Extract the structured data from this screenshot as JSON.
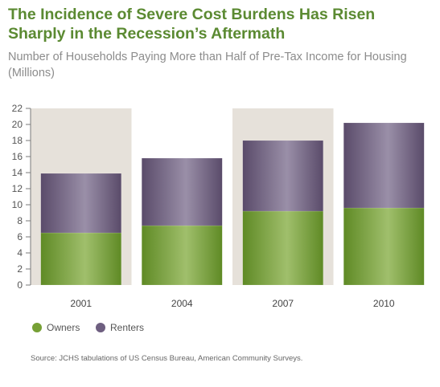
{
  "title": "The Incidence of Severe Cost Burdens Has Risen Sharply in the Recession’s Aftermath",
  "subtitle": "Number of Households Paying More than Half of Pre-Tax Income for Housing (Millions)",
  "source": "Source: JCHS tabulations of US Census Bureau, American Community Surveys.",
  "colors": {
    "owners": "#76a035",
    "renters": "#6e5f80",
    "band": "#e6e1da",
    "axis": "#7a7a7a"
  },
  "chart_data": {
    "type": "bar",
    "stacked": true,
    "categories": [
      "2001",
      "2004",
      "2007",
      "2010"
    ],
    "series": [
      {
        "name": "Owners",
        "values": [
          6.5,
          7.4,
          9.2,
          9.6
        ]
      },
      {
        "name": "Renters",
        "values": [
          7.4,
          8.4,
          8.8,
          10.6
        ]
      }
    ],
    "ylim": [
      0,
      22
    ],
    "yticks": [
      0,
      2,
      4,
      6,
      8,
      10,
      12,
      14,
      16,
      18,
      20,
      22
    ],
    "shaded_categories": [
      "2001",
      "2007"
    ],
    "legend_position": "bottom-left"
  }
}
